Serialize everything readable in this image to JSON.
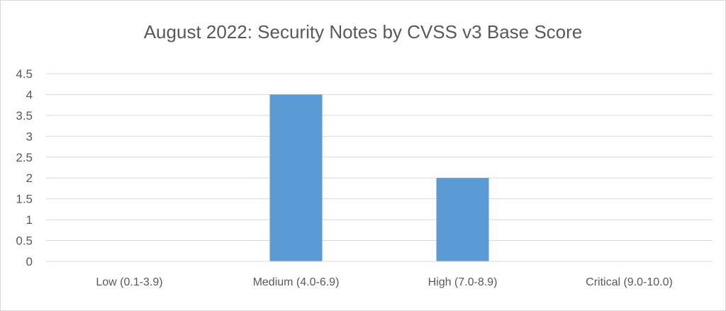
{
  "chart_data": {
    "type": "bar",
    "title": "August 2022: Security Notes by CVSS v3 Base Score",
    "xlabel": "",
    "ylabel": "",
    "categories": [
      "Low (0.1-3.9)",
      "Medium (4.0-6.9)",
      "High (7.0-8.9)",
      "Critical (9.0-10.0)"
    ],
    "values": [
      0,
      4,
      2,
      0
    ],
    "ylim": [
      0,
      4.5
    ],
    "yticks": [
      "0",
      "0.5",
      "1",
      "1.5",
      "2",
      "2.5",
      "3",
      "3.5",
      "4",
      "4.5"
    ],
    "grid": true,
    "legend": "none",
    "bar_color": "#5b9bd5"
  }
}
